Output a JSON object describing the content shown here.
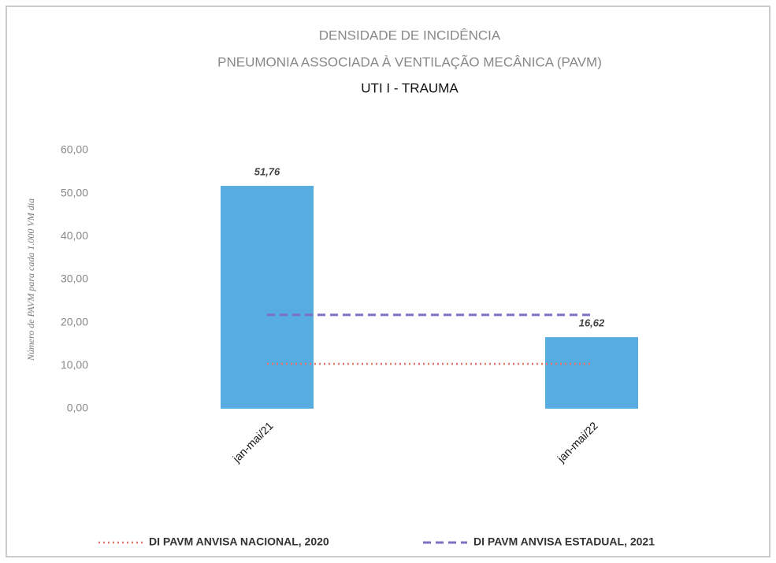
{
  "chart_data": {
    "type": "bar",
    "title": [
      "DENSIDADE DE INCIDÊNCIA",
      "PNEUMONIA ASSOCIADA À VENTILAÇÃO MECÂNICA (PAVM)",
      "UTI I - TRAUMA"
    ],
    "y_label": "Número de PAVM para cada 1.000 VM dia",
    "categories": [
      "jan-mai/21",
      "jan-mai/22"
    ],
    "values": [
      51.76,
      16.62
    ],
    "value_labels": [
      "51,76",
      "16,62"
    ],
    "color": "#58ade0",
    "series": [
      {
        "name": "DI PAVM ANVISA NACIONAL, 2020",
        "color": "#e8706a",
        "style": "dotted",
        "values": [
          10.4,
          10.4
        ]
      },
      {
        "name": "DI PAVM ANVISA ESTADUAL, 2021",
        "color": "#7a70c4",
        "style": "dashed",
        "values": [
          21.8,
          21.8
        ]
      }
    ],
    "ylim": [
      0,
      60
    ],
    "yticks": [
      {
        "value": 0,
        "label": "0,00"
      },
      {
        "value": 10,
        "label": "10,00"
      },
      {
        "value": 20,
        "label": "20,00"
      },
      {
        "value": 30,
        "label": "30,00"
      },
      {
        "value": 40,
        "label": "40,00"
      },
      {
        "value": 50,
        "label": "50,00"
      },
      {
        "value": 60,
        "label": "60,00"
      }
    ],
    "grid": false,
    "legend": "bottom"
  }
}
